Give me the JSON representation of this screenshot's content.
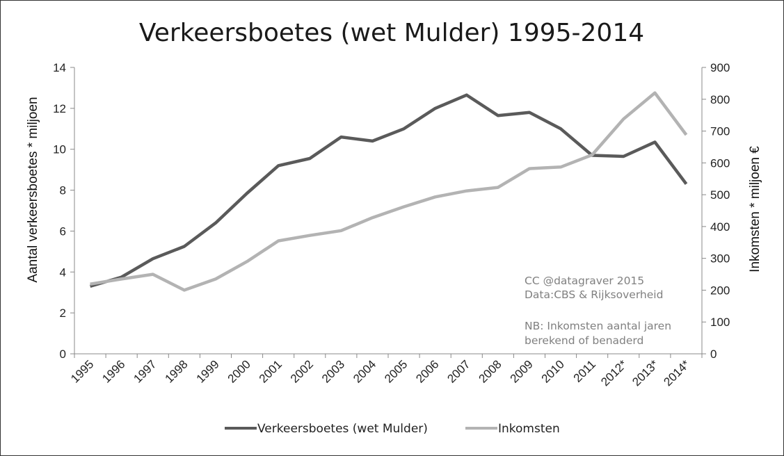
{
  "chart_data": {
    "type": "line",
    "title": "Verkeersboetes (wet Mulder) 1995-2014",
    "categories": [
      "1995",
      "1996",
      "1997",
      "1998",
      "1999",
      "2000",
      "2001",
      "2002",
      "2003",
      "2004",
      "2005",
      "2006",
      "2007",
      "2008",
      "2009",
      "2010",
      "2011",
      "2012*",
      "2013*",
      "2014*"
    ],
    "y_left": {
      "label": "Aantal verkeersboetes * miljoen",
      "min": 0,
      "max": 14,
      "ticks": [
        "0",
        "2",
        "4",
        "6",
        "8",
        "10",
        "12",
        "14"
      ]
    },
    "y_right": {
      "label": "Inkomsten * miljoen €",
      "min": 0,
      "max": 900,
      "ticks": [
        "0",
        "100",
        "200",
        "300",
        "400",
        "500",
        "600",
        "700",
        "800",
        "900"
      ]
    },
    "series": [
      {
        "name": "Verkeersboetes (wet Mulder)",
        "axis": "left",
        "color": "#5a5a5a",
        "values": [
          3.3,
          3.75,
          4.65,
          5.25,
          6.4,
          7.85,
          9.2,
          9.55,
          10.6,
          10.4,
          11.0,
          12.0,
          12.65,
          11.65,
          11.8,
          11.0,
          9.7,
          9.65,
          10.35,
          8.3
        ]
      },
      {
        "name": "Inkomsten",
        "axis": "right",
        "color": "#b3b3b3",
        "values": [
          219,
          235,
          250,
          200,
          235,
          290,
          355,
          372,
          387,
          428,
          462,
          493,
          512,
          523,
          582,
          587,
          625,
          738,
          820,
          688
        ]
      }
    ],
    "annotations": {
      "credit": [
        "CC @datagraver 2015",
        "Data:CBS & Rijksoverheid"
      ],
      "note": [
        "NB: Inkomsten aantal jaren",
        "berekend of benaderd"
      ]
    },
    "grid": false,
    "legend_position": "bottom"
  }
}
